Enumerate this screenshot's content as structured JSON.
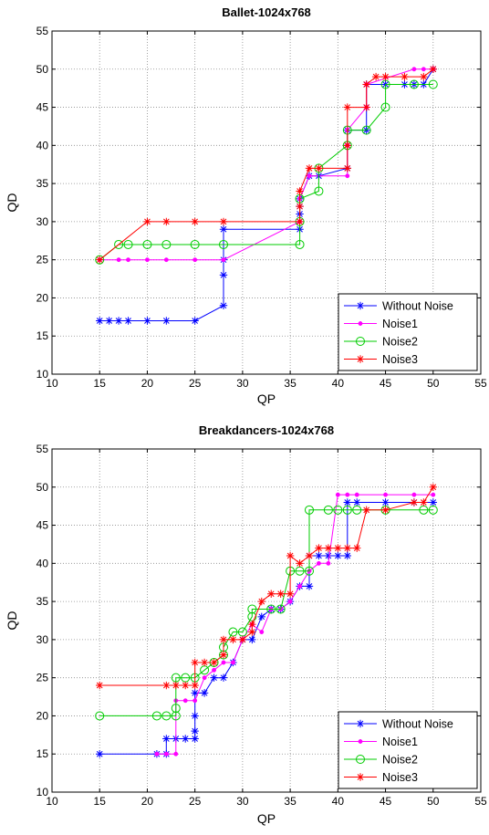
{
  "chart_data": [
    {
      "type": "line",
      "title": "Ballet-1024x768",
      "xlabel": "QP",
      "ylabel": "QD",
      "xlim": [
        10,
        55
      ],
      "ylim": [
        10,
        55
      ],
      "xticks": [
        "10",
        "15",
        "20",
        "25",
        "30",
        "35",
        "40",
        "45",
        "50",
        "55"
      ],
      "yticks": [
        "10",
        "15",
        "20",
        "25",
        "30",
        "35",
        "40",
        "45",
        "50",
        "55"
      ],
      "grid": true,
      "legend_position": "bottom-right",
      "series": [
        {
          "name": "Without Noise",
          "color": "#0000ff",
          "marker": "asterisk",
          "x": [
            15,
            16,
            17,
            18,
            20,
            22,
            25,
            28,
            28,
            28,
            28,
            36,
            36,
            36,
            36,
            37,
            38,
            41,
            41,
            41,
            43,
            43,
            43,
            45,
            47,
            48,
            49,
            50
          ],
          "y": [
            17,
            17,
            17,
            17,
            17,
            17,
            17,
            19,
            23,
            25,
            29,
            29,
            31,
            32,
            33,
            36,
            36,
            37,
            40,
            42,
            42,
            45,
            48,
            48,
            48,
            48,
            48,
            50
          ]
        },
        {
          "name": "Noise1",
          "color": "#ff00ff",
          "marker": "dot",
          "x": [
            15,
            17,
            18,
            20,
            22,
            25,
            28,
            36,
            36,
            37,
            41,
            41,
            41,
            43,
            43,
            48,
            49,
            50
          ],
          "y": [
            25,
            25,
            25,
            25,
            25,
            25,
            25,
            30,
            33,
            36,
            36,
            40,
            42,
            45,
            48,
            50,
            50,
            50
          ]
        },
        {
          "name": "Noise2",
          "color": "#00cc00",
          "marker": "circle",
          "x": [
            15,
            17,
            18,
            20,
            22,
            25,
            28,
            36,
            36,
            36,
            38,
            38,
            41,
            41,
            43,
            45,
            45,
            48,
            50
          ],
          "y": [
            25,
            27,
            27,
            27,
            27,
            27,
            27,
            27,
            30,
            33,
            34,
            37,
            40,
            42,
            42,
            45,
            48,
            48,
            48
          ]
        },
        {
          "name": "Noise3",
          "color": "#ff0000",
          "marker": "asterisk",
          "x": [
            15,
            20,
            22,
            25,
            28,
            36,
            36,
            36,
            37,
            38,
            41,
            41,
            41,
            43,
            43,
            44,
            45,
            47,
            49,
            50
          ],
          "y": [
            25,
            30,
            30,
            30,
            30,
            30,
            32,
            34,
            37,
            37,
            37,
            40,
            45,
            45,
            48,
            49,
            49,
            49,
            49,
            50
          ]
        }
      ]
    },
    {
      "type": "line",
      "title": "Breakdancers-1024x768",
      "xlabel": "QP",
      "ylabel": "QD",
      "xlim": [
        10,
        55
      ],
      "ylim": [
        10,
        55
      ],
      "xticks": [
        "10",
        "15",
        "20",
        "25",
        "30",
        "35",
        "40",
        "45",
        "50",
        "55"
      ],
      "yticks": [
        "10",
        "15",
        "20",
        "25",
        "30",
        "35",
        "40",
        "45",
        "50",
        "55"
      ],
      "grid": true,
      "legend_position": "bottom-right",
      "series": [
        {
          "name": "Without Noise",
          "color": "#0000ff",
          "marker": "asterisk",
          "x": [
            15,
            21,
            22,
            22,
            23,
            24,
            25,
            25,
            25,
            25,
            26,
            27,
            28,
            29,
            30,
            31,
            32,
            33,
            34,
            35,
            36,
            37,
            37,
            38,
            39,
            40,
            41,
            41,
            42,
            45,
            48,
            50
          ],
          "y": [
            15,
            15,
            15,
            17,
            17,
            17,
            17,
            18,
            20,
            23,
            23,
            25,
            25,
            27,
            30,
            30,
            33,
            34,
            34,
            35,
            37,
            37,
            41,
            41,
            41,
            41,
            41,
            48,
            48,
            48,
            48,
            48
          ]
        },
        {
          "name": "Noise1",
          "color": "#ff00ff",
          "marker": "dot",
          "x": [
            21,
            22,
            23,
            23,
            24,
            25,
            26,
            27,
            28,
            29,
            30,
            31,
            32,
            33,
            34,
            35,
            36,
            37,
            38,
            39,
            40,
            41,
            42,
            45,
            48,
            50
          ],
          "y": [
            15,
            15,
            15,
            22,
            22,
            22,
            25,
            26,
            27,
            27,
            30,
            32,
            31,
            34,
            34,
            35,
            37,
            39,
            40,
            40,
            49,
            49,
            49,
            49,
            49,
            49
          ]
        },
        {
          "name": "Noise2",
          "color": "#00cc00",
          "marker": "circle",
          "x": [
            15,
            21,
            22,
            23,
            23,
            23,
            24,
            25,
            26,
            27,
            28,
            28,
            29,
            30,
            31,
            31,
            33,
            34,
            35,
            36,
            37,
            37,
            39,
            40,
            41,
            42,
            45,
            49,
            50
          ],
          "y": [
            20,
            20,
            20,
            20,
            21,
            25,
            25,
            25,
            26,
            27,
            28,
            29,
            31,
            31,
            33,
            34,
            34,
            34,
            39,
            39,
            39,
            47,
            47,
            47,
            47,
            47,
            47,
            47,
            47
          ]
        },
        {
          "name": "Noise3",
          "color": "#ff0000",
          "marker": "asterisk",
          "x": [
            15,
            22,
            23,
            24,
            25,
            25,
            26,
            27,
            28,
            28,
            29,
            30,
            31,
            31,
            32,
            33,
            34,
            35,
            35,
            36,
            37,
            38,
            39,
            40,
            41,
            42,
            43,
            45,
            48,
            49,
            50
          ],
          "y": [
            24,
            24,
            24,
            24,
            24,
            27,
            27,
            27,
            28,
            30,
            30,
            30,
            31,
            32,
            35,
            36,
            36,
            36,
            41,
            40,
            41,
            42,
            42,
            42,
            42,
            42,
            47,
            47,
            48,
            48,
            50
          ]
        }
      ]
    }
  ]
}
